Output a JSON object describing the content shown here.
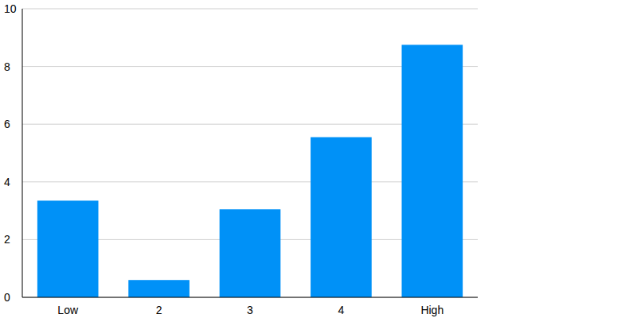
{
  "chart_data": {
    "type": "bar",
    "categories": [
      "Low",
      "2",
      "3",
      "4",
      "High"
    ],
    "values": [
      3.35,
      0.6,
      3.05,
      5.55,
      8.75
    ],
    "color": "#0091f7",
    "ylim": [
      0,
      10
    ],
    "yticks": [
      0,
      2,
      4,
      6,
      8,
      10
    ],
    "grid": true
  }
}
